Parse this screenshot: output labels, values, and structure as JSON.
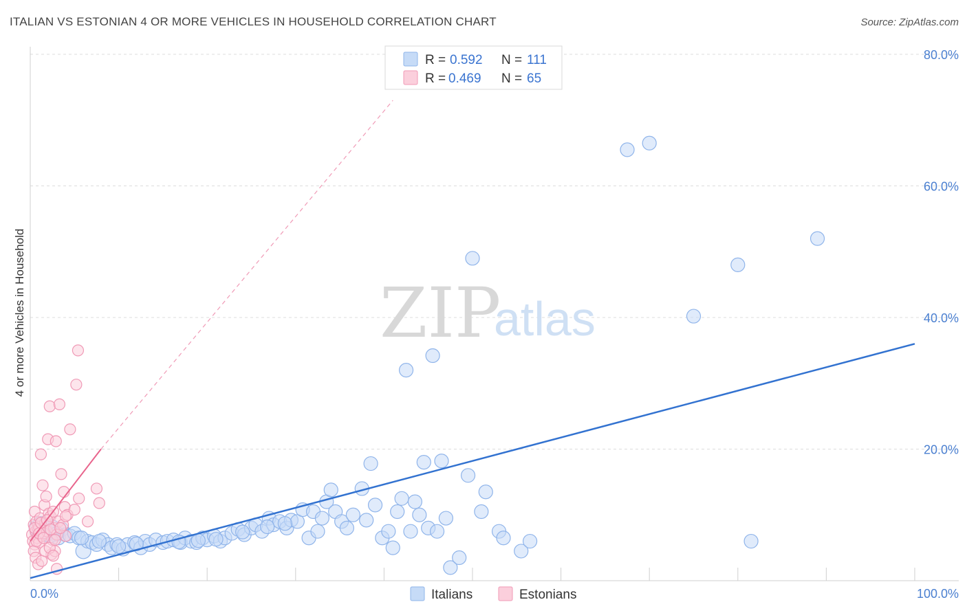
{
  "title": "ITALIAN VS ESTONIAN 4 OR MORE VEHICLES IN HOUSEHOLD CORRELATION CHART",
  "source": "Source: ZipAtlas.com",
  "watermark": {
    "zip": "ZIP",
    "atlas": "atlas"
  },
  "legend_top": [
    {
      "r_label": "R =",
      "r_value": "0.592",
      "n_label": "N =",
      "n_value": "111",
      "color": "#8fb4ea",
      "fill": "#c6dbf7"
    },
    {
      "r_label": "R =",
      "r_value": "0.469",
      "n_label": "N =",
      "n_value": "65",
      "color": "#f09ab6",
      "fill": "#fbcfdc"
    }
  ],
  "legend_bottom": [
    {
      "label": "Italians",
      "color": "#8fb4ea",
      "fill": "#c6dbf7"
    },
    {
      "label": "Estonians",
      "color": "#f09ab6",
      "fill": "#fbcfdc"
    }
  ],
  "chart_data": {
    "type": "scatter",
    "title": "ITALIAN VS ESTONIAN 4 OR MORE VEHICLES IN HOUSEHOLD CORRELATION CHART",
    "xlabel": "",
    "ylabel": "4 or more Vehicles in Household",
    "xlim": [
      0,
      100
    ],
    "ylim": [
      0,
      80
    ],
    "x_tick_labels": [
      "0.0%",
      "100.0%"
    ],
    "y_ticks": [
      20,
      40,
      60,
      80
    ],
    "y_tick_labels": [
      "20.0%",
      "40.0%",
      "60.0%",
      "80.0%"
    ],
    "grid": true,
    "legend_position": "top-center",
    "series": [
      {
        "name": "Italians",
        "color": "#8fb4ea",
        "fill": "#c6dbf7",
        "trend_color": "#3272d0",
        "trend": {
          "x": [
            0,
            100
          ],
          "y": [
            0.4,
            36.0
          ]
        },
        "points": [
          [
            0.8,
            8.0
          ],
          [
            1.2,
            8.5
          ],
          [
            1.5,
            8.0
          ],
          [
            1.8,
            7.2
          ],
          [
            2.0,
            7.5
          ],
          [
            2.4,
            8.0
          ],
          [
            2.8,
            7.0
          ],
          [
            3.2,
            6.5
          ],
          [
            3.6,
            7.8
          ],
          [
            4.0,
            7.0
          ],
          [
            4.5,
            6.8
          ],
          [
            5.0,
            7.2
          ],
          [
            5.5,
            6.5
          ],
          [
            6.0,
            4.5
          ],
          [
            6.5,
            6.0
          ],
          [
            7.0,
            5.8
          ],
          [
            7.5,
            5.5
          ],
          [
            8.2,
            6.2
          ],
          [
            8.8,
            5.5
          ],
          [
            9.2,
            5.0
          ],
          [
            9.8,
            5.5
          ],
          [
            10.5,
            4.8
          ],
          [
            11.0,
            5.5
          ],
          [
            11.8,
            5.8
          ],
          [
            12.5,
            5.0
          ],
          [
            13.0,
            6.0
          ],
          [
            13.5,
            5.5
          ],
          [
            14.2,
            6.2
          ],
          [
            15.0,
            5.8
          ],
          [
            15.5,
            6.0
          ],
          [
            16.2,
            6.2
          ],
          [
            17.0,
            5.8
          ],
          [
            17.5,
            6.5
          ],
          [
            18.2,
            6.0
          ],
          [
            18.8,
            5.8
          ],
          [
            19.5,
            6.5
          ],
          [
            20.0,
            6.2
          ],
          [
            20.8,
            6.8
          ],
          [
            21.5,
            6.0
          ],
          [
            22.0,
            6.5
          ],
          [
            22.8,
            7.2
          ],
          [
            23.5,
            7.8
          ],
          [
            24.2,
            7.0
          ],
          [
            25.0,
            8.0
          ],
          [
            25.5,
            8.5
          ],
          [
            26.2,
            7.5
          ],
          [
            27.0,
            9.5
          ],
          [
            27.5,
            8.5
          ],
          [
            28.2,
            9.0
          ],
          [
            29.0,
            8.0
          ],
          [
            29.5,
            9.2
          ],
          [
            30.2,
            9.0
          ],
          [
            30.8,
            10.8
          ],
          [
            31.5,
            6.5
          ],
          [
            32.0,
            10.5
          ],
          [
            32.5,
            7.5
          ],
          [
            33.0,
            9.5
          ],
          [
            33.5,
            12.0
          ],
          [
            34.0,
            13.8
          ],
          [
            34.5,
            10.5
          ],
          [
            35.2,
            9.0
          ],
          [
            35.8,
            8.0
          ],
          [
            36.5,
            10.0
          ],
          [
            37.5,
            14.0
          ],
          [
            38.0,
            9.2
          ],
          [
            38.5,
            17.8
          ],
          [
            39.0,
            11.5
          ],
          [
            39.8,
            6.5
          ],
          [
            40.5,
            7.5
          ],
          [
            41.0,
            5.0
          ],
          [
            41.5,
            10.5
          ],
          [
            42.0,
            12.5
          ],
          [
            42.5,
            32.0
          ],
          [
            43.0,
            7.5
          ],
          [
            43.5,
            12.0
          ],
          [
            44.0,
            10.0
          ],
          [
            44.5,
            18.0
          ],
          [
            45.0,
            8.0
          ],
          [
            45.5,
            34.2
          ],
          [
            46.0,
            7.5
          ],
          [
            46.5,
            18.2
          ],
          [
            47.0,
            9.5
          ],
          [
            47.5,
            2.0
          ],
          [
            48.5,
            3.5
          ],
          [
            49.5,
            16.0
          ],
          [
            50.0,
            49.0
          ],
          [
            51.0,
            10.5
          ],
          [
            51.5,
            13.5
          ],
          [
            53.0,
            7.5
          ],
          [
            53.5,
            6.5
          ],
          [
            55.5,
            4.5
          ],
          [
            56.5,
            6.0
          ],
          [
            67.5,
            65.5
          ],
          [
            70.0,
            66.5
          ],
          [
            75.0,
            40.2
          ],
          [
            80.0,
            48.0
          ],
          [
            81.5,
            6.0
          ],
          [
            89.0,
            52.0
          ],
          [
            1.0,
            7.5
          ],
          [
            2.2,
            6.8
          ],
          [
            3.0,
            7.2
          ],
          [
            5.8,
            6.5
          ],
          [
            7.8,
            6.0
          ],
          [
            10.0,
            5.2
          ],
          [
            12.0,
            5.6
          ],
          [
            16.8,
            5.9
          ],
          [
            19.0,
            6.1
          ],
          [
            21.0,
            6.3
          ],
          [
            24.0,
            7.4
          ],
          [
            26.8,
            8.2
          ],
          [
            28.8,
            8.7
          ]
        ]
      },
      {
        "name": "Estonians",
        "color": "#f09ab6",
        "fill": "#fbcfdc",
        "trend_color": "#e8648c",
        "trend": {
          "x": [
            0,
            8
          ],
          "y": [
            6.0,
            20.0
          ]
        },
        "trend_extended": {
          "x": [
            8,
            41
          ],
          "y": [
            20.0,
            73.0
          ]
        },
        "points": [
          [
            0.2,
            7.0
          ],
          [
            0.3,
            6.0
          ],
          [
            0.4,
            8.5
          ],
          [
            0.5,
            5.5
          ],
          [
            0.5,
            10.5
          ],
          [
            0.6,
            7.5
          ],
          [
            0.7,
            9.0
          ],
          [
            0.8,
            6.5
          ],
          [
            0.9,
            7.8
          ],
          [
            1.0,
            8.2
          ],
          [
            1.0,
            5.8
          ],
          [
            1.1,
            9.5
          ],
          [
            1.2,
            19.2
          ],
          [
            1.3,
            6.8
          ],
          [
            1.4,
            14.5
          ],
          [
            1.5,
            7.2
          ],
          [
            1.6,
            11.5
          ],
          [
            1.7,
            8.8
          ],
          [
            1.8,
            12.8
          ],
          [
            1.9,
            7.5
          ],
          [
            2.0,
            21.5
          ],
          [
            2.1,
            10.2
          ],
          [
            2.2,
            26.5
          ],
          [
            2.3,
            9.8
          ],
          [
            2.4,
            4.0
          ],
          [
            2.5,
            6.2
          ],
          [
            2.6,
            10.5
          ],
          [
            2.7,
            8.0
          ],
          [
            2.8,
            4.5
          ],
          [
            2.9,
            21.2
          ],
          [
            3.0,
            7.0
          ],
          [
            3.2,
            9.0
          ],
          [
            3.3,
            26.8
          ],
          [
            3.5,
            16.2
          ],
          [
            3.7,
            8.5
          ],
          [
            3.8,
            13.5
          ],
          [
            3.9,
            11.2
          ],
          [
            4.0,
            6.8
          ],
          [
            4.2,
            10.0
          ],
          [
            4.5,
            23.0
          ],
          [
            5.2,
            29.8
          ],
          [
            5.4,
            35.0
          ],
          [
            5.5,
            12.5
          ],
          [
            6.5,
            9.0
          ],
          [
            7.5,
            14.0
          ],
          [
            7.8,
            11.8
          ],
          [
            0.4,
            4.5
          ],
          [
            0.6,
            3.5
          ],
          [
            0.9,
            2.5
          ],
          [
            1.3,
            3.0
          ],
          [
            1.7,
            4.5
          ],
          [
            2.2,
            5.0
          ],
          [
            2.6,
            3.8
          ],
          [
            3.0,
            1.8
          ],
          [
            0.5,
            8.0
          ],
          [
            0.7,
            6.0
          ],
          [
            1.0,
            7.2
          ],
          [
            1.2,
            8.8
          ],
          [
            1.5,
            6.5
          ],
          [
            1.9,
            9.2
          ],
          [
            2.3,
            7.8
          ],
          [
            2.8,
            6.2
          ],
          [
            3.4,
            8.0
          ],
          [
            4.0,
            9.8
          ],
          [
            5.0,
            10.8
          ]
        ]
      }
    ]
  }
}
